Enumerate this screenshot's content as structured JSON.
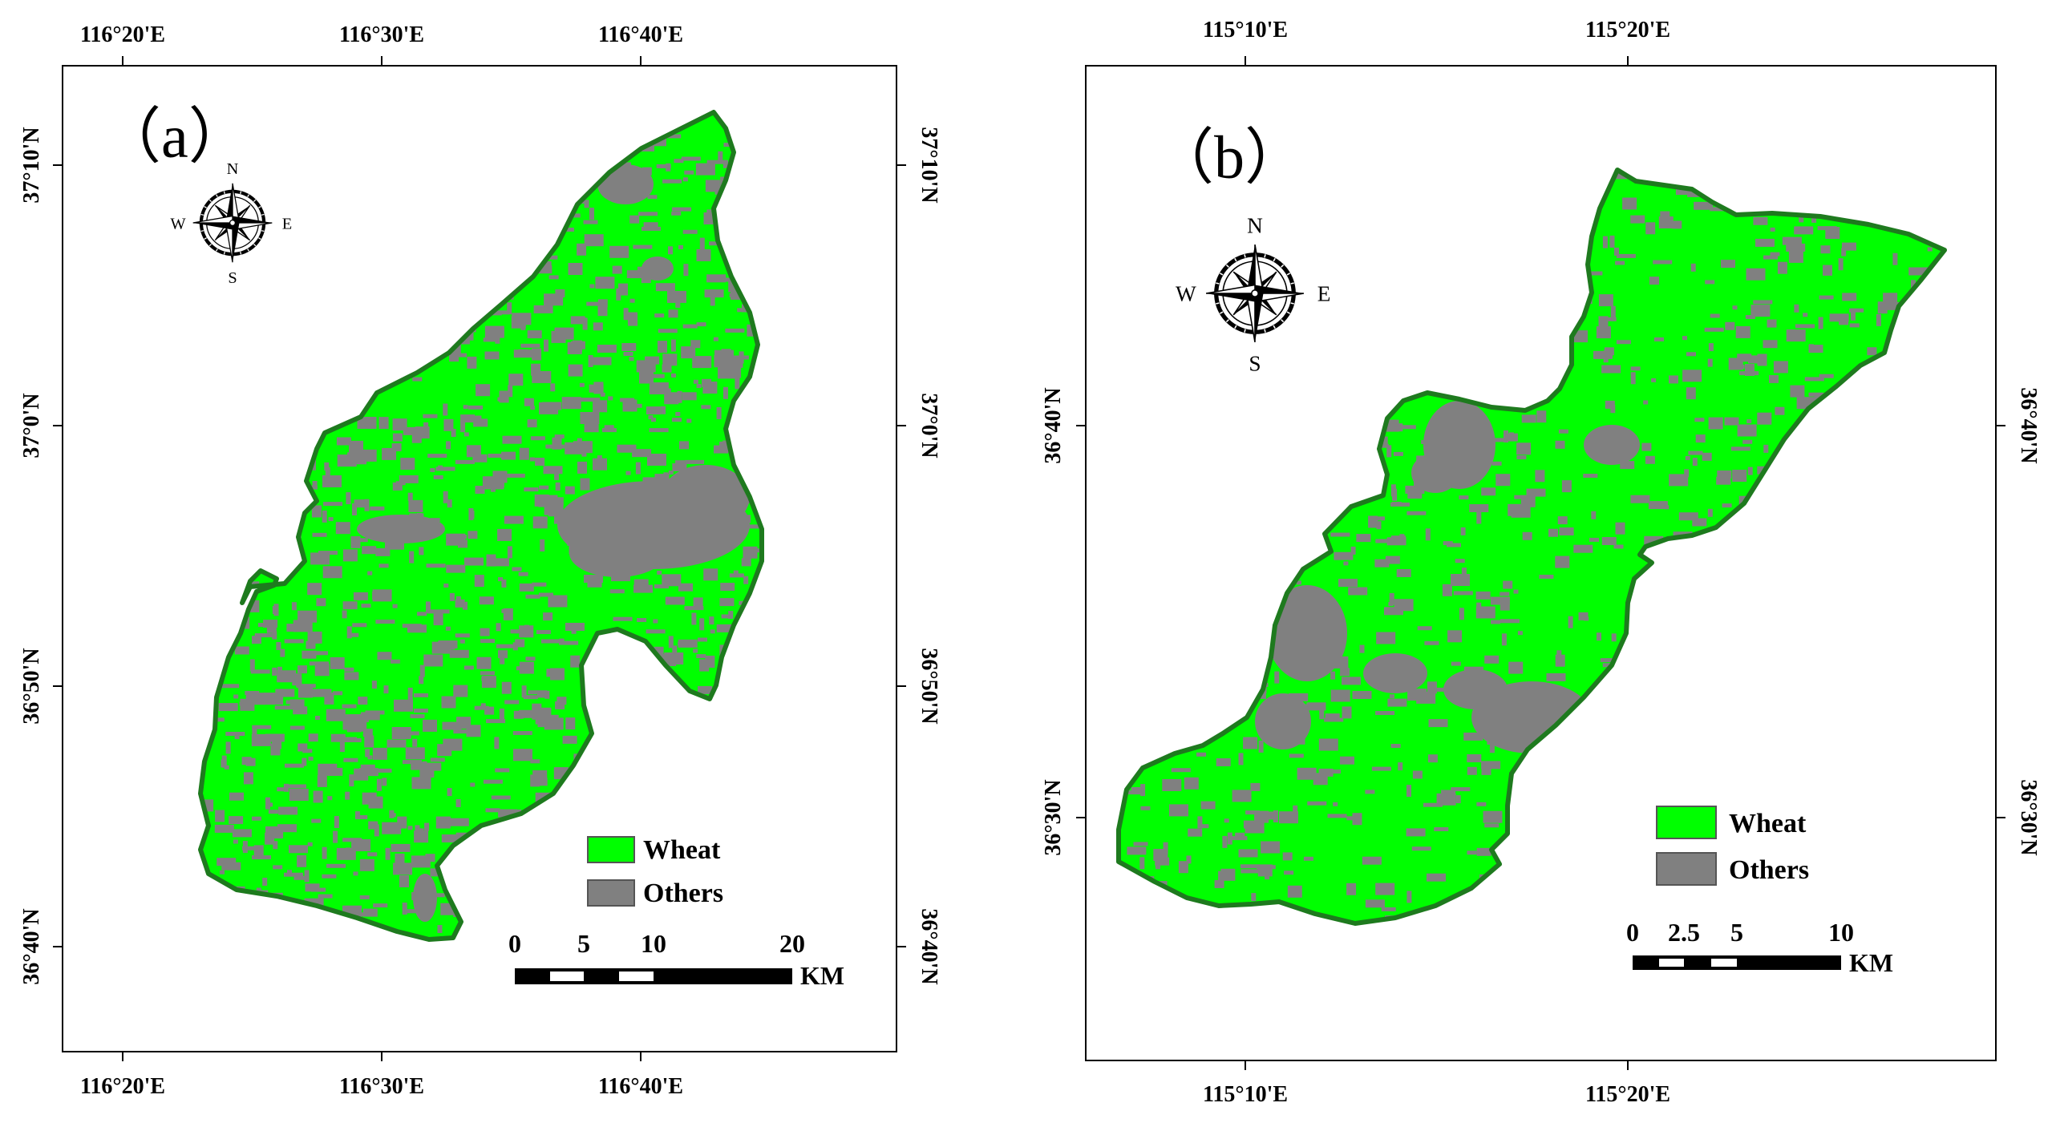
{
  "panels": [
    {
      "id": "a",
      "label": "（a）",
      "lon_ticks": [
        "116°20'E",
        "116°30'E",
        "116°40'E"
      ],
      "lat_ticks": [
        "37°10'N",
        "37°0'N",
        "36°50'N",
        "36°40'N"
      ],
      "compass": {
        "n": "N",
        "s": "S",
        "e": "E",
        "w": "W"
      },
      "legend": [
        {
          "label": "Wheat",
          "color": "#00ff00"
        },
        {
          "label": "Others",
          "color": "#808080"
        }
      ],
      "scale": {
        "ticks": [
          "0",
          "5",
          "10",
          "20"
        ],
        "unit": "KM"
      }
    },
    {
      "id": "b",
      "label": "（b）",
      "lon_ticks": [
        "115°10'E",
        "115°20'E"
      ],
      "lat_ticks": [
        "36°40'N",
        "36°30'N"
      ],
      "compass": {
        "n": "N",
        "s": "S",
        "e": "E",
        "w": "W"
      },
      "legend": [
        {
          "label": "Wheat",
          "color": "#00ff00"
        },
        {
          "label": "Others",
          "color": "#808080"
        }
      ],
      "scale": {
        "ticks": [
          "0",
          "2.5",
          "5",
          "10"
        ],
        "unit": "KM"
      }
    }
  ],
  "colors": {
    "wheat": "#00ff00",
    "others": "#808080",
    "boundary": "#1e7a1e"
  }
}
